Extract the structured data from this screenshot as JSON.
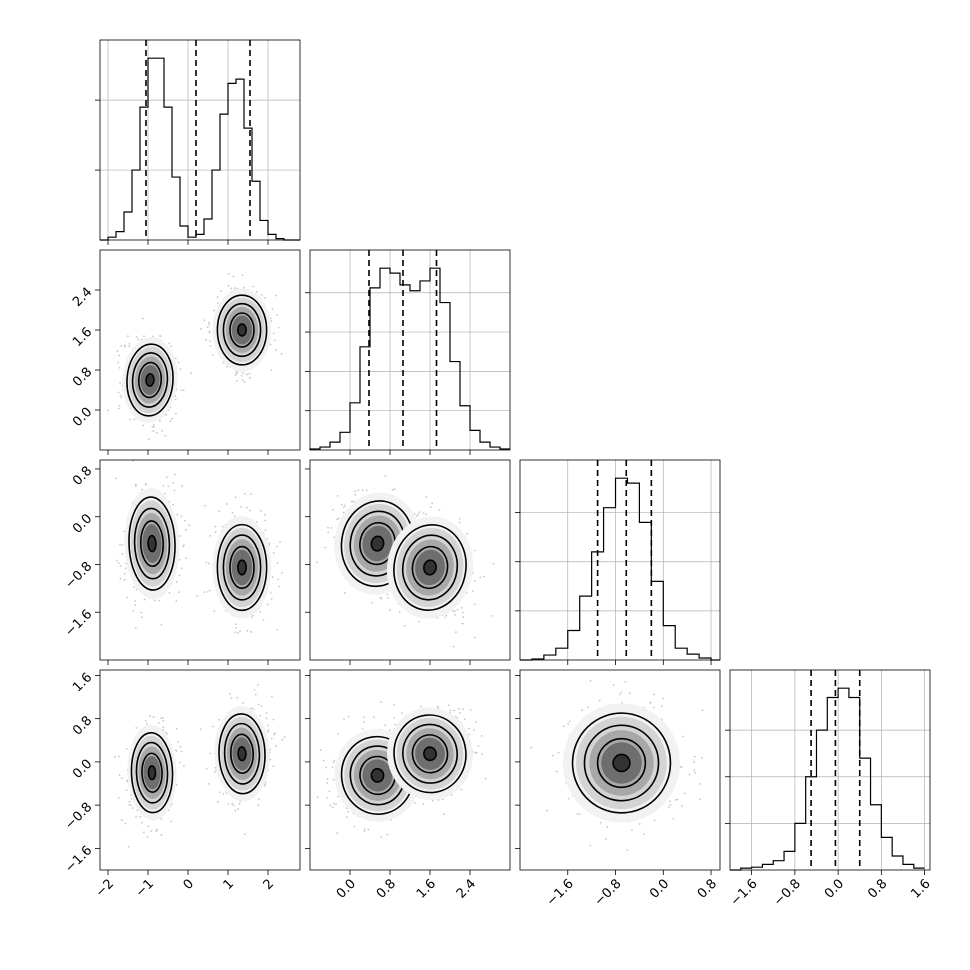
{
  "chart_data": {
    "type": "corner",
    "colors": {
      "line": "#000000",
      "grid": "#b0b0b0",
      "scatter": "#000000"
    },
    "axes": [
      {
        "ticks": [
          -2,
          -1,
          0,
          1,
          2
        ],
        "tick_labels": [
          "−2",
          "−1",
          "0",
          "1",
          "2"
        ],
        "range": [
          -2.2,
          2.8
        ]
      },
      {
        "ticks": [
          0.0,
          0.8,
          1.6,
          2.4
        ],
        "tick_labels": [
          "0.0",
          "0.8",
          "1.6",
          "2.4"
        ],
        "range": [
          -0.8,
          3.2
        ]
      },
      {
        "ticks": [
          -1.6,
          -0.8,
          0.0,
          0.8
        ],
        "tick_labels": [
          "−1.6",
          "−0.8",
          "0.0",
          "0.8"
        ],
        "range": [
          -2.4,
          0.95
        ]
      },
      {
        "ticks": [
          -1.6,
          -0.8,
          0.0,
          0.8,
          1.6
        ],
        "tick_labels": [
          "−1.6",
          "−0.8",
          "0.0",
          "0.8",
          "1.6"
        ],
        "range": [
          -2.0,
          1.7
        ]
      }
    ],
    "diagonal": [
      {
        "bins": [
          -2.2,
          -2.0,
          -1.8,
          -1.6,
          -1.4,
          -1.2,
          -1.0,
          -0.8,
          -0.6,
          -0.4,
          -0.2,
          0.0,
          0.2,
          0.4,
          0.6,
          0.8,
          1.0,
          1.2,
          1.4,
          1.6,
          1.8,
          2.0,
          2.2,
          2.4,
          2.6,
          2.8
        ],
        "counts": [
          0,
          2,
          6,
          20,
          50,
          95,
          130,
          130,
          95,
          45,
          10,
          2,
          4,
          15,
          50,
          90,
          112,
          115,
          80,
          42,
          14,
          4,
          1,
          0,
          0
        ],
        "quantiles": [
          -1.05,
          0.2,
          1.55
        ],
        "y_ticks": [
          50,
          100
        ]
      },
      {
        "bins": [
          -0.8,
          -0.6,
          -0.4,
          -0.2,
          0.0,
          0.2,
          0.4,
          0.6,
          0.8,
          1.0,
          1.2,
          1.4,
          1.6,
          1.8,
          2.0,
          2.2,
          2.4,
          2.6,
          2.8,
          3.0,
          3.2
        ],
        "counts": [
          1,
          3,
          8,
          18,
          48,
          105,
          165,
          185,
          180,
          168,
          162,
          172,
          185,
          150,
          90,
          45,
          20,
          8,
          3,
          1
        ],
        "quantiles": [
          0.38,
          1.06,
          1.73
        ],
        "y_ticks": [
          40,
          80,
          120,
          160
        ]
      },
      {
        "bins": [
          -2.4,
          -2.2,
          -2.0,
          -1.8,
          -1.6,
          -1.4,
          -1.2,
          -1.0,
          -0.8,
          -0.6,
          -0.4,
          -0.2,
          0.0,
          0.2,
          0.4,
          0.6,
          0.8,
          0.95
        ],
        "counts": [
          0,
          1,
          5,
          12,
          30,
          65,
          110,
          155,
          185,
          180,
          140,
          80,
          35,
          12,
          6,
          2,
          0
        ],
        "quantiles": [
          -1.1,
          -0.62,
          -0.2
        ],
        "y_ticks": [
          50,
          100,
          150
        ]
      },
      {
        "bins": [
          -2.0,
          -1.8,
          -1.6,
          -1.4,
          -1.2,
          -1.0,
          -0.8,
          -0.6,
          -0.4,
          -0.2,
          0.0,
          0.2,
          0.4,
          0.6,
          0.8,
          1.0,
          1.2,
          1.4,
          1.6
        ],
        "counts": [
          0,
          2,
          3,
          6,
          10,
          20,
          50,
          100,
          150,
          185,
          195,
          185,
          120,
          70,
          35,
          15,
          6,
          2
        ],
        "quantiles": [
          -0.5,
          -0.05,
          0.4
        ],
        "y_ticks": [
          50,
          100,
          150
        ]
      }
    ],
    "pairs": [
      {
        "x": 0,
        "y": 1,
        "clusters": [
          {
            "mean": [
              -0.95,
              0.6
            ],
            "sd": [
              0.28,
              0.35
            ],
            "rho": -0.1
          },
          {
            "mean": [
              1.35,
              1.6
            ],
            "sd": [
              0.3,
              0.34
            ],
            "rho": 0.0
          }
        ]
      },
      {
        "x": 0,
        "y": 2,
        "clusters": [
          {
            "mean": [
              -0.9,
              -0.45
            ],
            "sd": [
              0.28,
              0.38
            ],
            "rho": 0.05
          },
          {
            "mean": [
              1.35,
              -0.85
            ],
            "sd": [
              0.3,
              0.35
            ],
            "rho": 0.0
          }
        ]
      },
      {
        "x": 1,
        "y": 2,
        "clusters": [
          {
            "mean": [
              0.55,
              -0.45
            ],
            "sd": [
              0.35,
              0.35
            ],
            "rho": -0.25
          },
          {
            "mean": [
              1.6,
              -0.85
            ],
            "sd": [
              0.35,
              0.35
            ],
            "rho": -0.25
          }
        ]
      },
      {
        "x": 0,
        "y": 3,
        "clusters": [
          {
            "mean": [
              -0.9,
              -0.2
            ],
            "sd": [
              0.25,
              0.36
            ],
            "rho": 0.05
          },
          {
            "mean": [
              1.35,
              0.15
            ],
            "sd": [
              0.28,
              0.36
            ],
            "rho": 0.05
          }
        ]
      },
      {
        "x": 1,
        "y": 3,
        "clusters": [
          {
            "mean": [
              0.55,
              -0.25
            ],
            "sd": [
              0.35,
              0.35
            ],
            "rho": 0.2
          },
          {
            "mean": [
              1.6,
              0.15
            ],
            "sd": [
              0.35,
              0.35
            ],
            "rho": 0.2
          }
        ]
      },
      {
        "x": 2,
        "y": 3,
        "clusters": [
          {
            "mean": [
              -0.7,
              -0.02
            ],
            "sd": [
              0.4,
              0.45
            ],
            "rho": -0.05
          }
        ]
      }
    ]
  }
}
